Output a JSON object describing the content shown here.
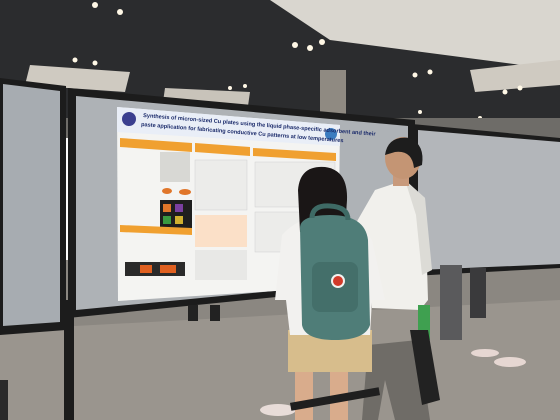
{
  "poster": {
    "title_lines": [
      "Synthesis of micron-sized Cu plates using the liquid phase-specific adsorbent and their",
      "paste application for fabricating conductive Cu patterns at low temperatures"
    ]
  }
}
